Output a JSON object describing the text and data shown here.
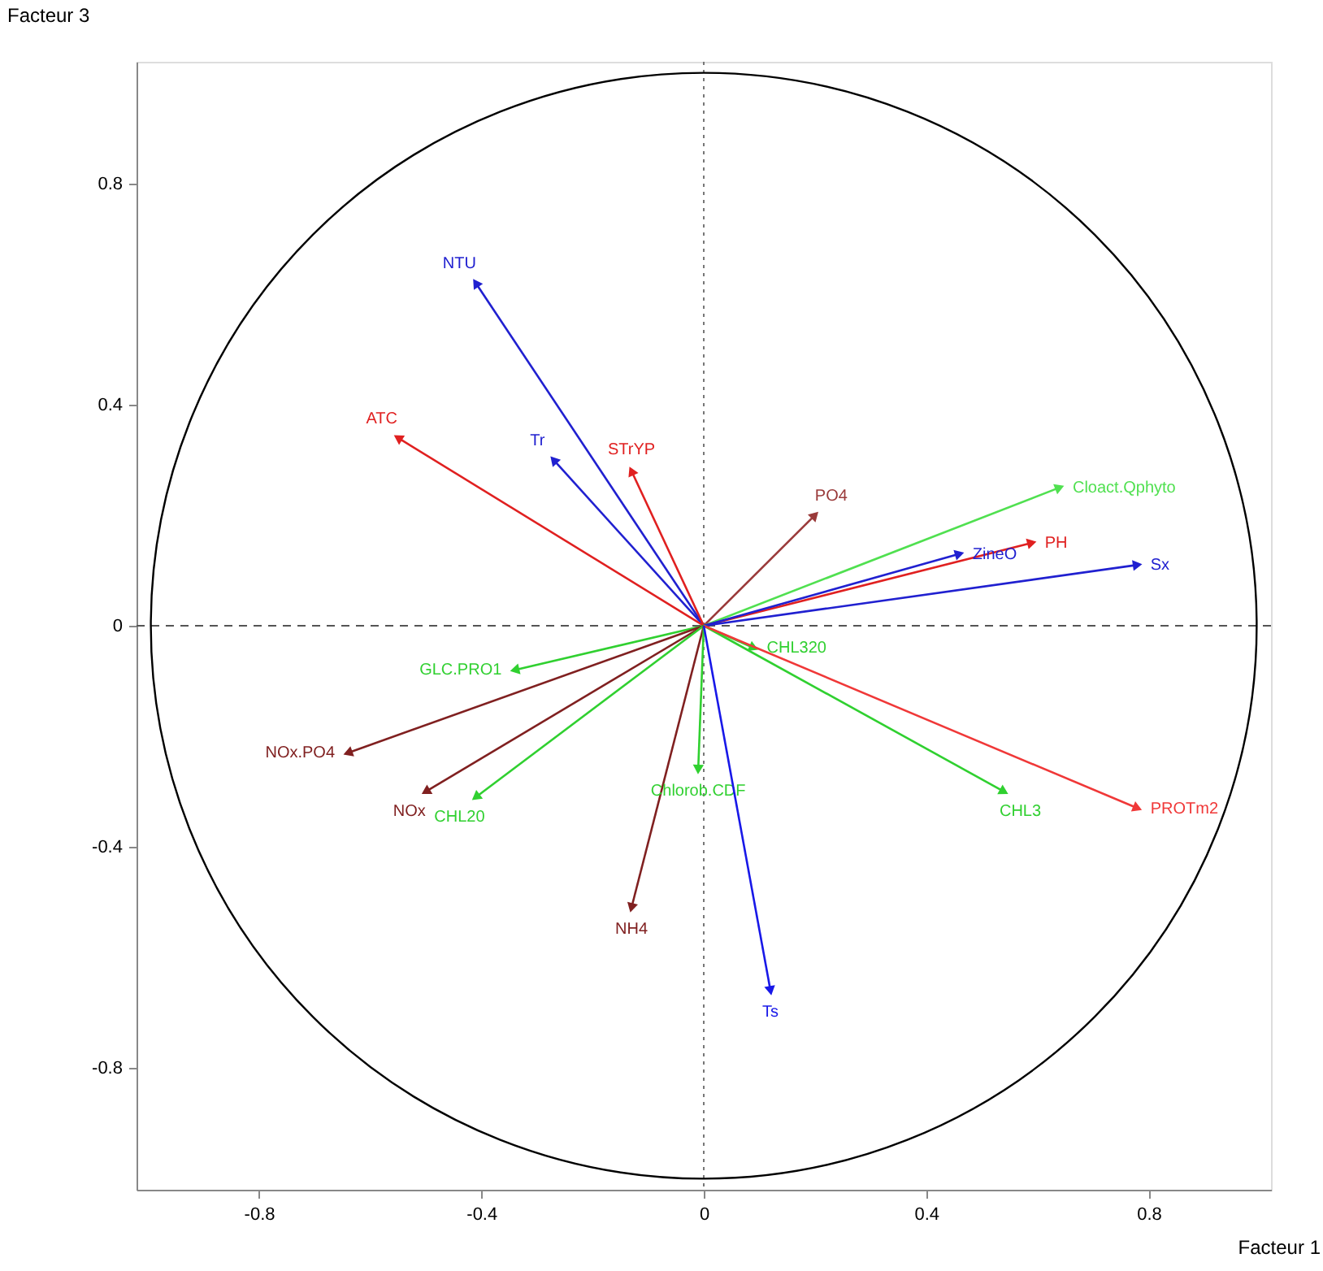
{
  "chart_data": {
    "type": "line",
    "xlabel": "Facteur 1",
    "ylabel": "Facteur 3",
    "xlim": [
      -1.02,
      1.02
    ],
    "ylim": [
      -1.02,
      1.02
    ],
    "xticks": [
      -0.8,
      -0.4,
      0,
      0.4,
      0.8
    ],
    "yticks": [
      -0.8,
      -0.4,
      0,
      0.4,
      0.8
    ],
    "grid": false,
    "marker": "triangle",
    "line_style": "solid",
    "ref_lines": [
      {
        "axis": "x",
        "value": 0,
        "color": "#777777",
        "line_style": "dotted"
      },
      {
        "axis": "y",
        "value": 0,
        "color": "#555555",
        "line_style": "dashed"
      }
    ],
    "series": [
      {
        "name": "NTU",
        "color": "#2020d0",
        "x": [
          0,
          -0.41
        ],
        "values": [
          0,
          0.62
        ]
      },
      {
        "name": "Tr",
        "color": "#2020d0",
        "x": [
          0,
          -0.27
        ],
        "values": [
          0,
          0.3
        ]
      },
      {
        "name": "STrYP",
        "color": "#e02020",
        "x": [
          0,
          -0.13
        ],
        "values": [
          0,
          0.28
        ]
      },
      {
        "name": "ATC",
        "color": "#e02020",
        "x": [
          0,
          -0.55
        ],
        "values": [
          0,
          0.34
        ]
      },
      {
        "name": "PO4",
        "color": "#9a3a3a",
        "x": [
          0,
          0.2
        ],
        "values": [
          0,
          0.2
        ]
      },
      {
        "name": "Cloact.Qphyto",
        "color": "#50e050",
        "x": [
          0,
          0.64
        ],
        "values": [
          0,
          0.25
        ]
      },
      {
        "name": "PH",
        "color": "#e02020",
        "x": [
          0,
          0.59
        ],
        "values": [
          0,
          0.15
        ]
      },
      {
        "name": "ZineO",
        "color": "#2020d0",
        "x": [
          0,
          0.46
        ],
        "values": [
          0,
          0.13
        ]
      },
      {
        "name": "Sx",
        "color": "#2020d0",
        "x": [
          0,
          0.78
        ],
        "values": [
          0,
          0.11
        ]
      },
      {
        "name": "CHL320",
        "color": "#30d030",
        "x": [
          0,
          0.09
        ],
        "values": [
          0,
          -0.04
        ]
      },
      {
        "name": "GLC.PRO1",
        "color": "#30d030",
        "x": [
          0,
          -0.34
        ],
        "values": [
          0,
          -0.08
        ]
      },
      {
        "name": "NOx.PO4",
        "color": "#802020",
        "x": [
          0,
          -0.64
        ],
        "values": [
          0,
          -0.23
        ]
      },
      {
        "name": "NOx",
        "color": "#802020",
        "x": [
          0,
          -0.5
        ],
        "values": [
          0,
          -0.3
        ]
      },
      {
        "name": "CHL20",
        "color": "#30d030",
        "x": [
          0,
          -0.41
        ],
        "values": [
          0,
          -0.31
        ]
      },
      {
        "name": "NH4",
        "color": "#802020",
        "x": [
          0,
          -0.13
        ],
        "values": [
          0,
          -0.51
        ]
      },
      {
        "name": "Chlorob.CDF",
        "color": "#30d030",
        "x": [
          0,
          -0.01
        ],
        "values": [
          0,
          -0.26
        ]
      },
      {
        "name": "CHL3",
        "color": "#30d030",
        "x": [
          0,
          0.54
        ],
        "values": [
          0,
          -0.3
        ]
      },
      {
        "name": "PROTm2",
        "color": "#f03838",
        "x": [
          0,
          0.78
        ],
        "values": [
          0,
          -0.33
        ]
      },
      {
        "name": "Ts",
        "color": "#1818e8",
        "x": [
          0,
          0.12
        ],
        "values": [
          0,
          -0.66
        ]
      }
    ]
  }
}
